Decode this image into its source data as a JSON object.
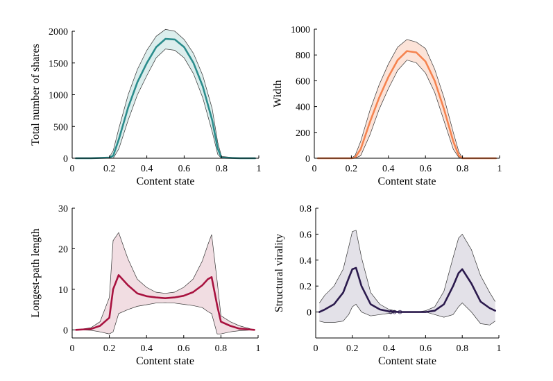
{
  "chart_data": [
    {
      "id": "shares",
      "type": "line",
      "xlabel": "Content state",
      "ylabel": "Total number of shares",
      "xlim": [
        0,
        1
      ],
      "ylim": [
        0,
        2000
      ],
      "xticks": [
        0,
        0.2,
        0.4,
        0.6,
        0.8,
        1
      ],
      "xtick_labels": [
        "0",
        "0.2",
        "0.4",
        "0.6",
        "0.8",
        "1"
      ],
      "yticks": [
        0,
        500,
        1000,
        1500,
        2000
      ],
      "ytick_labels": [
        "0",
        "500",
        "1000",
        "1500",
        "2000"
      ],
      "color": "#2b8c8c",
      "band_fill": "#dceeed",
      "x": [
        0.02,
        0.1,
        0.2,
        0.22,
        0.25,
        0.3,
        0.35,
        0.4,
        0.45,
        0.5,
        0.55,
        0.6,
        0.65,
        0.7,
        0.75,
        0.78,
        0.8,
        0.9,
        0.98
      ],
      "mean": [
        0,
        0,
        10,
        40,
        300,
        800,
        1200,
        1500,
        1750,
        1880,
        1870,
        1750,
        1500,
        1130,
        600,
        150,
        10,
        0,
        0
      ],
      "upper": [
        0,
        0,
        20,
        120,
        470,
        1000,
        1400,
        1700,
        1920,
        2030,
        2000,
        1870,
        1650,
        1300,
        780,
        250,
        30,
        0,
        0
      ],
      "lower": [
        0,
        0,
        0,
        0,
        150,
        600,
        1000,
        1300,
        1580,
        1720,
        1700,
        1580,
        1330,
        950,
        420,
        60,
        0,
        0,
        0
      ]
    },
    {
      "id": "width",
      "type": "line",
      "xlabel": "Content state",
      "ylabel": "Width",
      "xlim": [
        0,
        1
      ],
      "ylim": [
        0,
        1000
      ],
      "xticks": [
        0,
        0.2,
        0.4,
        0.6,
        0.8,
        1
      ],
      "xtick_labels": [
        "0",
        "0.2",
        "0.4",
        "0.6",
        "0.8",
        "1"
      ],
      "yticks": [
        0,
        200,
        400,
        600,
        800,
        1000
      ],
      "ytick_labels": [
        "0",
        "200",
        "400",
        "600",
        "800",
        "1000"
      ],
      "color": "#f5834f",
      "band_fill": "#fce3d8",
      "x": [
        0.02,
        0.1,
        0.2,
        0.22,
        0.25,
        0.3,
        0.35,
        0.4,
        0.45,
        0.5,
        0.55,
        0.6,
        0.65,
        0.7,
        0.75,
        0.78,
        0.8,
        0.9,
        0.98
      ],
      "mean": [
        0,
        0,
        0,
        5,
        70,
        280,
        470,
        630,
        760,
        830,
        820,
        750,
        600,
        380,
        130,
        20,
        0,
        0,
        0
      ],
      "upper": [
        0,
        0,
        2,
        20,
        130,
        370,
        570,
        730,
        860,
        920,
        900,
        850,
        690,
        470,
        200,
        50,
        0,
        0,
        0
      ],
      "lower": [
        0,
        0,
        0,
        0,
        20,
        180,
        380,
        540,
        680,
        760,
        740,
        660,
        510,
        290,
        70,
        5,
        0,
        0,
        0
      ]
    },
    {
      "id": "longest-path",
      "type": "line",
      "xlabel": "Content state",
      "ylabel": "Longest-path length",
      "xlim": [
        0,
        1
      ],
      "ylim": [
        -2,
        30
      ],
      "xticks": [
        0,
        0.2,
        0.4,
        0.6,
        0.8,
        1
      ],
      "xtick_labels": [
        "0",
        "0.2",
        "0.4",
        "0.6",
        "0.8",
        "1"
      ],
      "yticks": [
        0,
        10,
        20,
        30
      ],
      "ytick_labels": [
        "0",
        "10",
        "20",
        "30"
      ],
      "color": "#a8123f",
      "band_fill": "#f1dde2",
      "x": [
        0.02,
        0.1,
        0.15,
        0.2,
        0.22,
        0.25,
        0.3,
        0.35,
        0.4,
        0.45,
        0.5,
        0.55,
        0.6,
        0.65,
        0.7,
        0.73,
        0.75,
        0.78,
        0.8,
        0.85,
        0.9,
        0.98
      ],
      "mean": [
        0,
        0.2,
        1,
        3,
        10,
        13.5,
        11,
        9,
        8.3,
        8,
        7.8,
        8,
        8.4,
        9.3,
        11,
        12.5,
        13,
        6,
        2,
        1,
        0.3,
        0
      ],
      "upper": [
        0,
        0.5,
        2,
        8,
        22,
        24,
        17.5,
        12.5,
        10.5,
        9.3,
        9,
        9.3,
        10.5,
        12.5,
        17,
        21,
        23.5,
        12,
        3.5,
        2,
        1,
        0
      ],
      "lower": [
        0,
        -0.1,
        -0.5,
        -1,
        -0.5,
        4,
        5,
        5.8,
        6.2,
        6.6,
        6.7,
        6.6,
        6.3,
        6,
        5.5,
        4.5,
        4,
        -1,
        -1,
        -0.5,
        -0.2,
        0
      ]
    },
    {
      "id": "structural-virality",
      "type": "line",
      "xlabel": "Content state",
      "ylabel": "Structural virality",
      "xlim": [
        0,
        1
      ],
      "ylim": [
        -0.2,
        0.8
      ],
      "xticks": [
        0,
        0.2,
        0.4,
        0.6,
        0.8,
        1
      ],
      "xtick_labels": [
        "0",
        "0.2",
        "0.4",
        "0.6",
        "0.8",
        "1"
      ],
      "yticks": [
        0,
        0.2,
        0.4,
        0.6,
        0.8
      ],
      "ytick_labels": [
        "0",
        "0.2",
        "0.4",
        "0.6",
        "0.8"
      ],
      "color": "#2b1a4d",
      "band_fill": "#e3e1e8",
      "x": [
        0.02,
        0.05,
        0.1,
        0.15,
        0.18,
        0.2,
        0.22,
        0.25,
        0.3,
        0.35,
        0.4,
        0.45,
        0.5,
        0.55,
        0.6,
        0.65,
        0.7,
        0.75,
        0.78,
        0.8,
        0.85,
        0.9,
        0.95,
        0.98
      ],
      "mean": [
        0,
        0.02,
        0.06,
        0.15,
        0.26,
        0.33,
        0.34,
        0.2,
        0.06,
        0.02,
        0.005,
        0,
        0,
        0,
        0,
        0.01,
        0.06,
        0.2,
        0.3,
        0.33,
        0.22,
        0.08,
        0.03,
        0.01
      ],
      "upper": [
        0.07,
        0.13,
        0.2,
        0.33,
        0.5,
        0.62,
        0.63,
        0.42,
        0.15,
        0.06,
        0.02,
        0.005,
        0,
        0,
        0.01,
        0.04,
        0.16,
        0.42,
        0.57,
        0.6,
        0.48,
        0.28,
        0.15,
        0.08
      ],
      "lower": [
        -0.07,
        -0.08,
        -0.08,
        -0.07,
        -0.02,
        0.04,
        0.06,
        0.0,
        -0.03,
        -0.02,
        -0.01,
        0,
        0,
        0,
        0,
        -0.02,
        -0.04,
        -0.02,
        0.04,
        0.07,
        0.0,
        -0.09,
        -0.1,
        -0.07
      ]
    }
  ]
}
